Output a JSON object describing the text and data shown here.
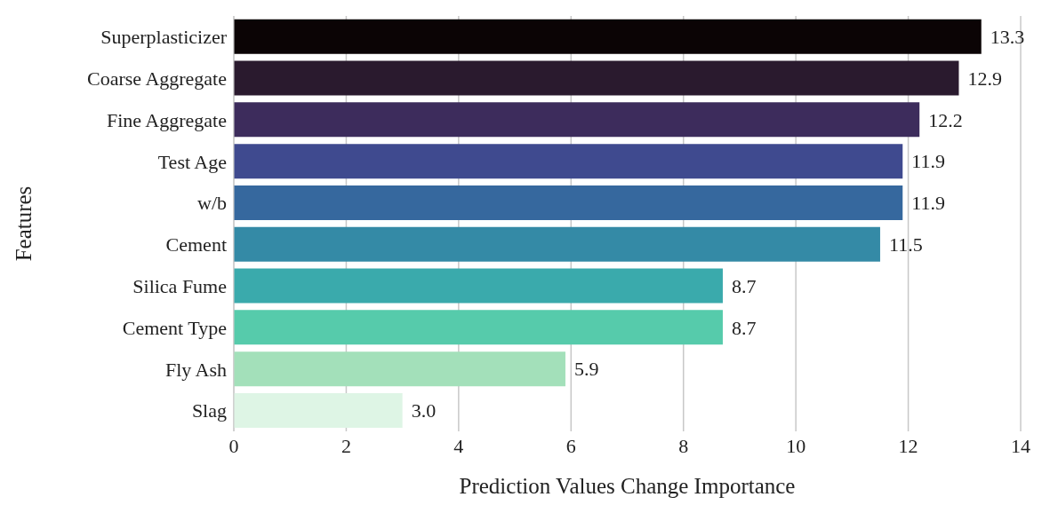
{
  "chart_data": {
    "type": "bar",
    "orientation": "horizontal",
    "xlabel": "Prediction Values Change Importance",
    "ylabel": "Features",
    "categories": [
      "Superplasticizer",
      "Coarse Aggregate",
      "Fine Aggregate",
      "Test Age",
      "w/b",
      "Cement",
      "Silica Fume",
      "Cement Type",
      "Fly Ash",
      "Slag"
    ],
    "values": [
      13.3,
      12.9,
      12.2,
      11.9,
      11.9,
      11.5,
      8.7,
      8.7,
      5.9,
      3.0
    ],
    "colors": [
      "#0b0405",
      "#2a1a2e",
      "#3d2c5c",
      "#3f4a8f",
      "#36689e",
      "#348aa6",
      "#3aaaac",
      "#56cbab",
      "#a3e0ba",
      "#def5e5"
    ],
    "value_labels": [
      "13.3",
      "12.9",
      "12.2",
      "11.9",
      "11.9",
      "11.5",
      "8.7",
      "8.7",
      "5.9",
      "3.0"
    ],
    "xlim": [
      0,
      14
    ],
    "xticks": [
      0,
      2,
      4,
      6,
      8,
      10,
      12,
      14
    ],
    "grid": "x"
  }
}
